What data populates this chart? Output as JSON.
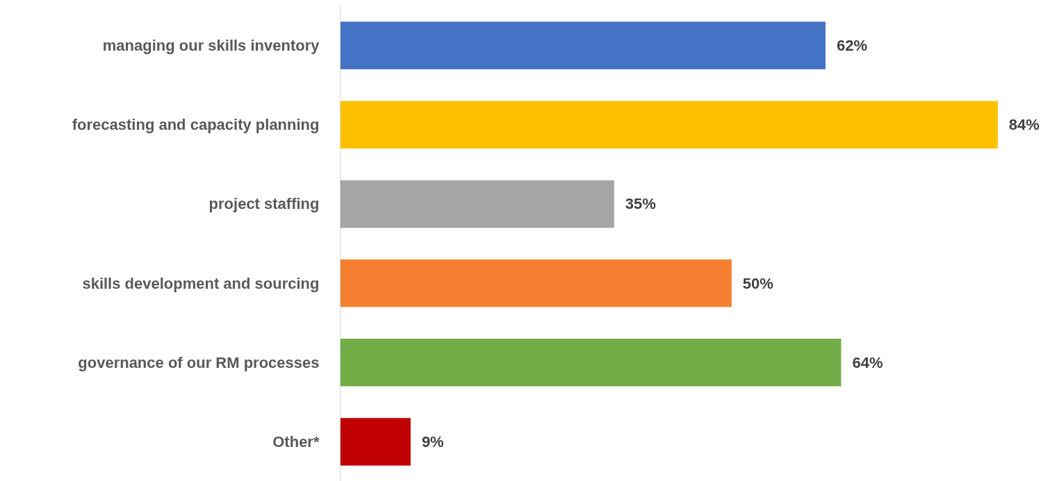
{
  "chart_data": {
    "type": "bar",
    "orientation": "horizontal",
    "categories": [
      "managing our skills inventory",
      "forecasting and capacity planning",
      "project staffing",
      "skills development and sourcing",
      "governance of our RM processes",
      "Other*"
    ],
    "values": [
      62,
      84,
      35,
      50,
      64,
      9
    ],
    "colors": [
      "#4472c4",
      "#ffc000",
      "#a5a5a5",
      "#f58031",
      "#70ad47",
      "#c00000"
    ],
    "value_labels": [
      "62%",
      "84%",
      "35%",
      "50%",
      "64%",
      "9%"
    ]
  }
}
